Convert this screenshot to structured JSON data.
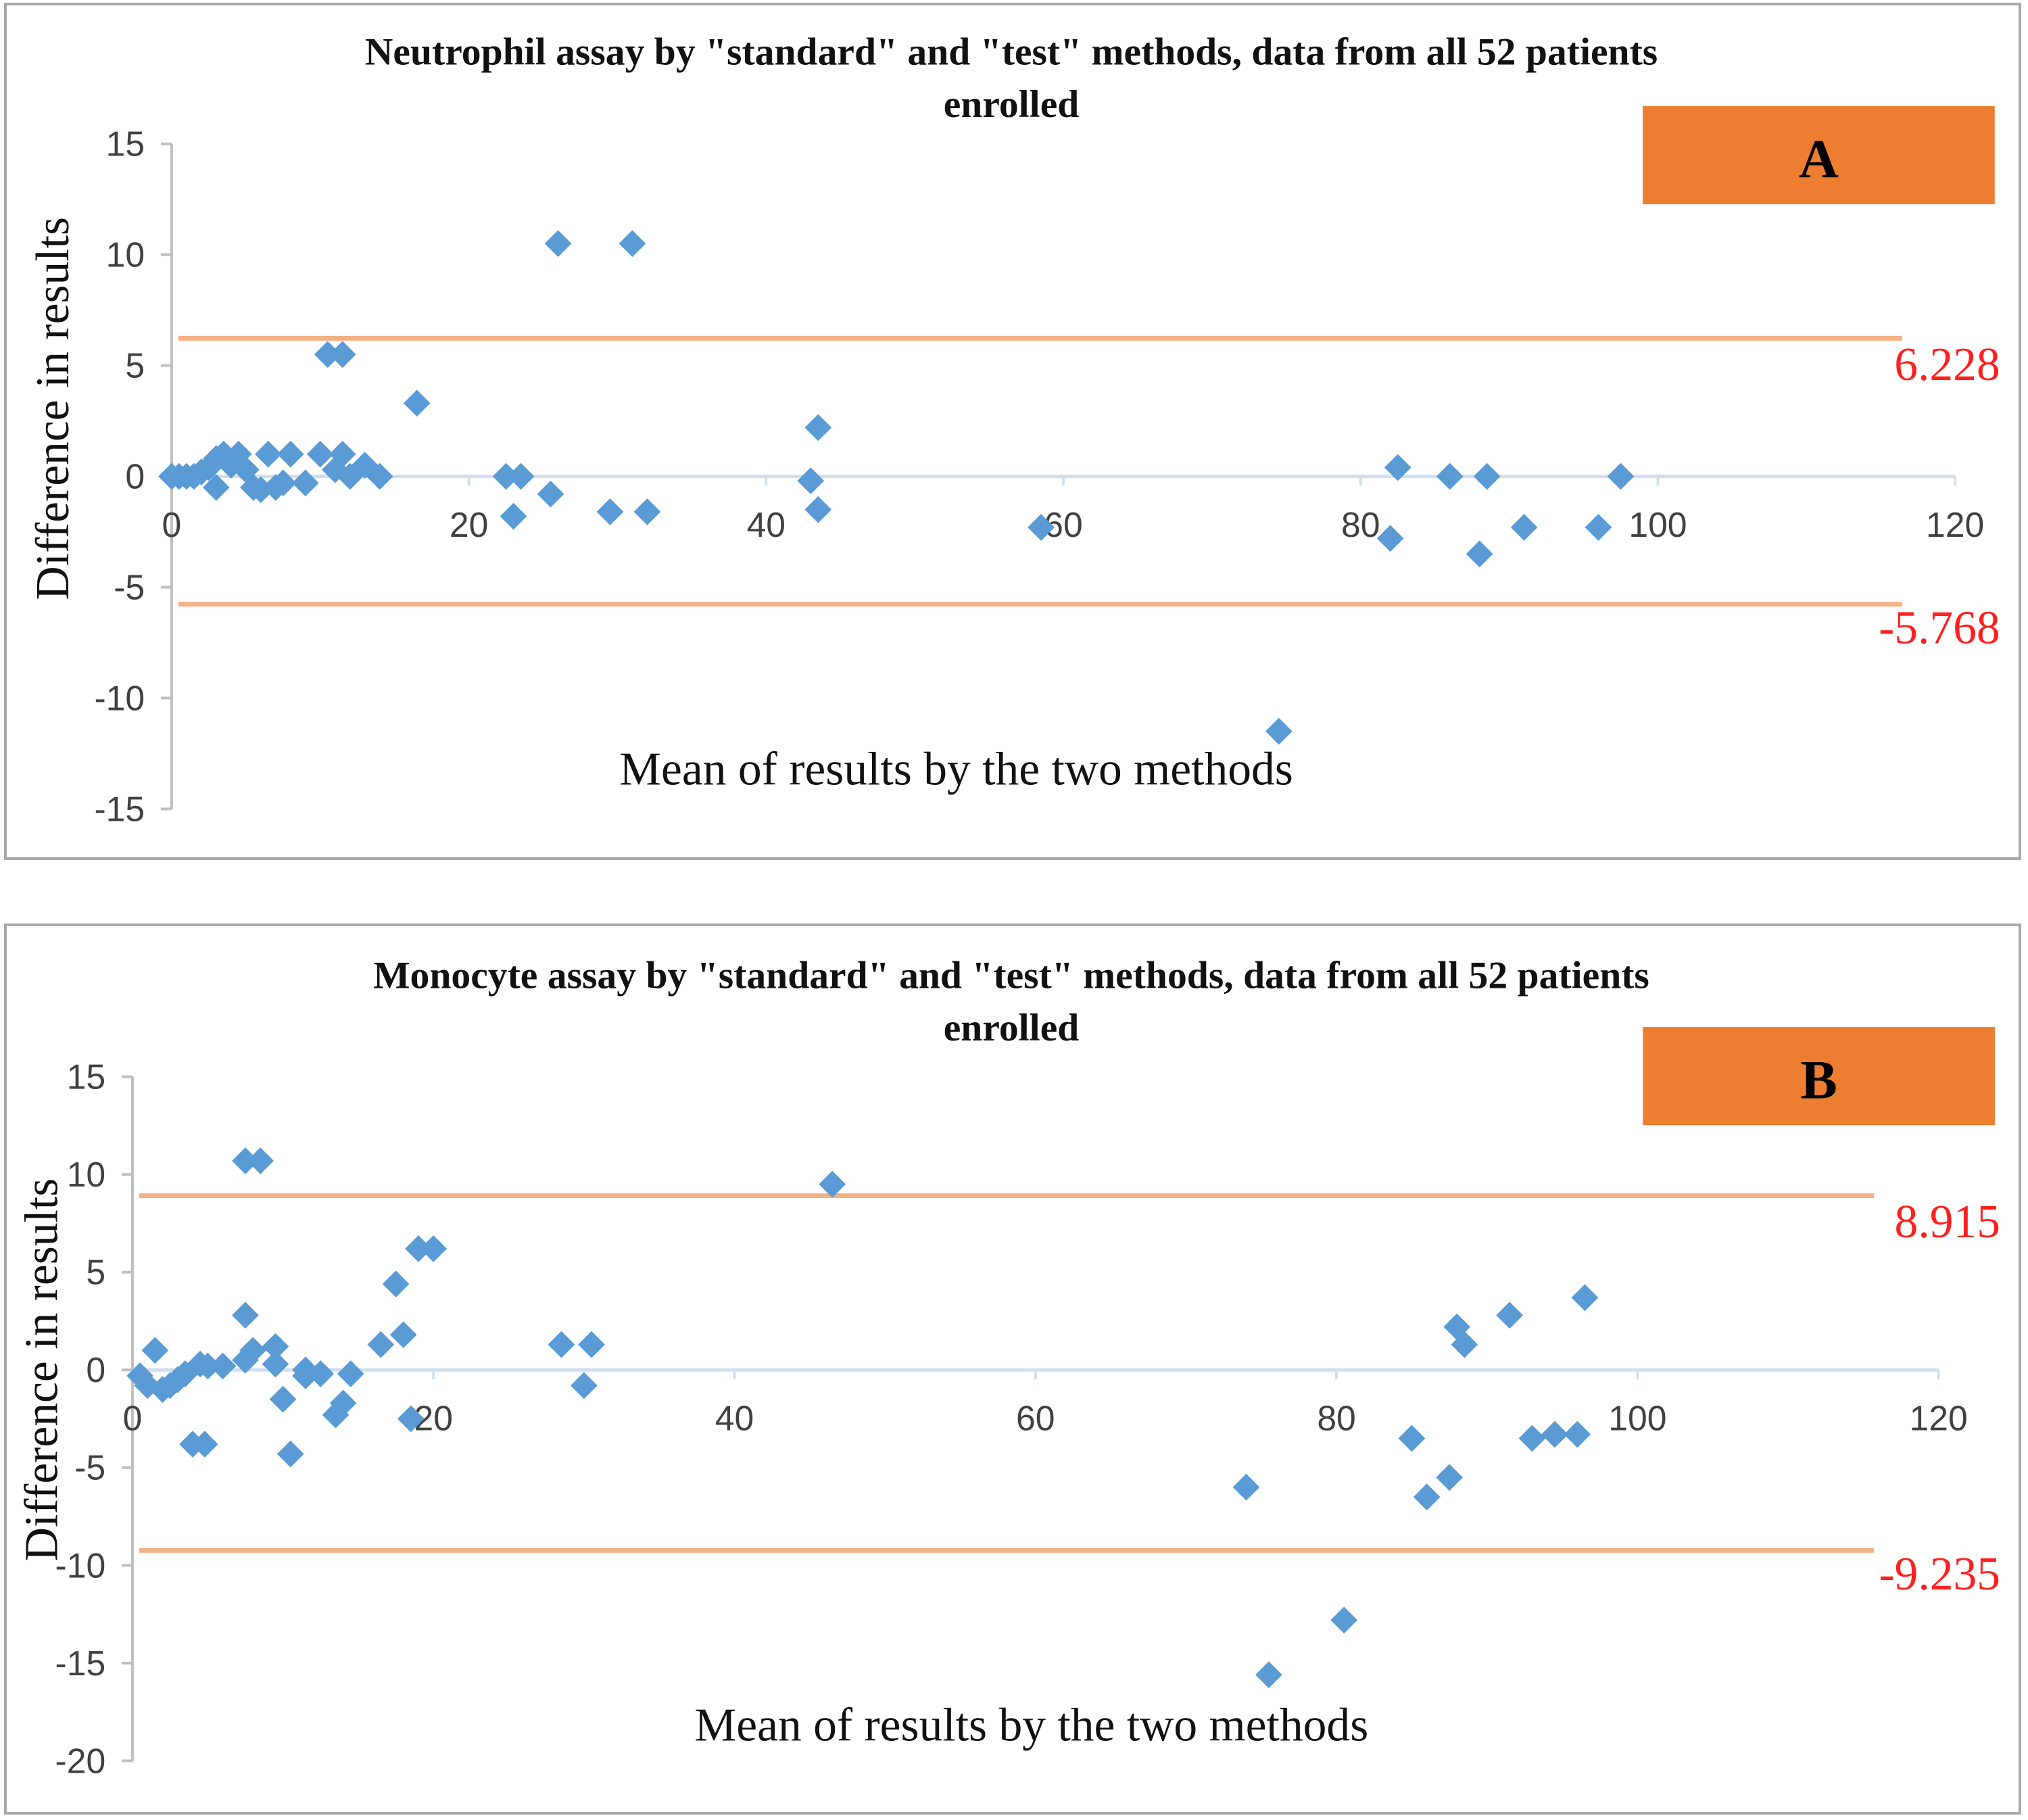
{
  "colors": {
    "marker": "#5b9bd5",
    "limit_line": "#f4b183",
    "zero_line": "#d0dff0",
    "axis": "#bfbfbf",
    "limit_text": "#ff1f1f",
    "badge": "#ed7d31"
  },
  "chart_data": [
    {
      "type": "scatter",
      "panel": "A",
      "title": "Neutrophil assay by \"standard\" and \"test\" methods, data from all 52 patients enrolled",
      "title_lines": [
        "Neutrophil assay by \"standard\" and \"test\" methods, data from all 52 patients",
        "enrolled"
      ],
      "xlabel": "Mean of results by the two methods",
      "ylabel": "Difference in results",
      "xlim": [
        0,
        120
      ],
      "ylim": [
        -15,
        15
      ],
      "xticks": [
        "0",
        "20",
        "40",
        "60",
        "80",
        "100",
        "120"
      ],
      "yticks": [
        "15",
        "10",
        "5",
        "0",
        "-5",
        "-10",
        "-15"
      ],
      "limits": [
        {
          "name": "upper",
          "value": 6.228,
          "label": "6.228"
        },
        {
          "name": "lower",
          "value": -5.768,
          "label": "-5.768"
        }
      ],
      "points": [
        [
          0,
          0
        ],
        [
          0.5,
          0
        ],
        [
          1,
          0
        ],
        [
          1.5,
          0
        ],
        [
          2,
          0.2
        ],
        [
          2.5,
          0.4
        ],
        [
          3,
          0.8
        ],
        [
          3,
          -0.5
        ],
        [
          3.5,
          1
        ],
        [
          4,
          0.5
        ],
        [
          4.5,
          1
        ],
        [
          5,
          0.3
        ],
        [
          5.5,
          -0.5
        ],
        [
          6,
          -0.6
        ],
        [
          6.5,
          1
        ],
        [
          7,
          -0.5
        ],
        [
          7.5,
          -0.3
        ],
        [
          8,
          1
        ],
        [
          9,
          -0.3
        ],
        [
          10,
          1
        ],
        [
          10.5,
          5.5
        ],
        [
          11,
          0.3
        ],
        [
          11.5,
          1
        ],
        [
          11.5,
          5.5
        ],
        [
          12,
          0
        ],
        [
          13,
          0.5
        ],
        [
          14,
          0
        ],
        [
          16.5,
          3.3
        ],
        [
          22.5,
          0
        ],
        [
          23,
          -1.8
        ],
        [
          23.5,
          0
        ],
        [
          25.5,
          -0.8
        ],
        [
          26,
          10.5
        ],
        [
          29.5,
          -1.6
        ],
        [
          31,
          10.5
        ],
        [
          32,
          -1.6
        ],
        [
          43,
          -0.2
        ],
        [
          43.5,
          -1.5
        ],
        [
          43.5,
          2.2
        ],
        [
          58.5,
          -2.3
        ],
        [
          74.5,
          -11.5
        ],
        [
          82,
          -2.8
        ],
        [
          82.5,
          0.4
        ],
        [
          86,
          0
        ],
        [
          88,
          -3.5
        ],
        [
          88.5,
          0
        ],
        [
          91,
          -2.3
        ],
        [
          96,
          -2.3
        ],
        [
          97.5,
          0
        ]
      ]
    },
    {
      "type": "scatter",
      "panel": "B",
      "title": "Monocyte assay by \"standard\" and \"test\" methods, data from all 52 patients enrolled",
      "title_lines": [
        "Monocyte assay by \"standard\" and \"test\" methods, data from all 52 patients",
        "enrolled"
      ],
      "xlabel": "Mean of results by the two methods",
      "ylabel": "Difference in results",
      "xlim": [
        0,
        120
      ],
      "ylim": [
        -20,
        15
      ],
      "xticks": [
        "0",
        "20",
        "40",
        "60",
        "80",
        "100",
        "120"
      ],
      "yticks": [
        "15",
        "10",
        "5",
        "0",
        "-5",
        "-10",
        "-15",
        "-20"
      ],
      "limits": [
        {
          "name": "upper",
          "value": 8.915,
          "label": "8.915"
        },
        {
          "name": "lower",
          "value": -9.235,
          "label": "-9.235"
        }
      ],
      "points": [
        [
          0.5,
          -0.3
        ],
        [
          1,
          -0.8
        ],
        [
          1.5,
          1
        ],
        [
          2,
          -1
        ],
        [
          2.5,
          -0.8
        ],
        [
          3,
          -0.5
        ],
        [
          3.5,
          -0.2
        ],
        [
          4,
          -3.8
        ],
        [
          4.5,
          0.3
        ],
        [
          4.8,
          -3.8
        ],
        [
          5,
          0.2
        ],
        [
          6,
          0.2
        ],
        [
          7.5,
          2.8
        ],
        [
          7.5,
          0.5
        ],
        [
          7.5,
          10.7
        ],
        [
          8,
          1
        ],
        [
          8.5,
          10.7
        ],
        [
          9.5,
          0.3
        ],
        [
          9.5,
          1.2
        ],
        [
          10,
          -1.5
        ],
        [
          10.5,
          -4.3
        ],
        [
          11.5,
          0
        ],
        [
          11.5,
          -0.3
        ],
        [
          12.5,
          -0.2
        ],
        [
          13.5,
          -2.3
        ],
        [
          14,
          -1.7
        ],
        [
          14.5,
          -0.2
        ],
        [
          16.5,
          1.3
        ],
        [
          17.5,
          4.4
        ],
        [
          18,
          1.8
        ],
        [
          18.5,
          -2.5
        ],
        [
          19,
          6.2
        ],
        [
          20,
          6.2
        ],
        [
          28.5,
          1.3
        ],
        [
          30,
          -0.8
        ],
        [
          30.5,
          1.3
        ],
        [
          46.5,
          9.5
        ],
        [
          74,
          -6
        ],
        [
          75.5,
          -15.6
        ],
        [
          80.5,
          -12.8
        ],
        [
          85,
          -3.5
        ],
        [
          86,
          -6.5
        ],
        [
          87.5,
          -5.5
        ],
        [
          88,
          2.2
        ],
        [
          88.5,
          1.3
        ],
        [
          91.5,
          2.8
        ],
        [
          93,
          -3.5
        ],
        [
          94.5,
          -3.3
        ],
        [
          96,
          -3.3
        ],
        [
          96.5,
          3.7
        ]
      ]
    }
  ],
  "badges": [
    "A",
    "B"
  ]
}
